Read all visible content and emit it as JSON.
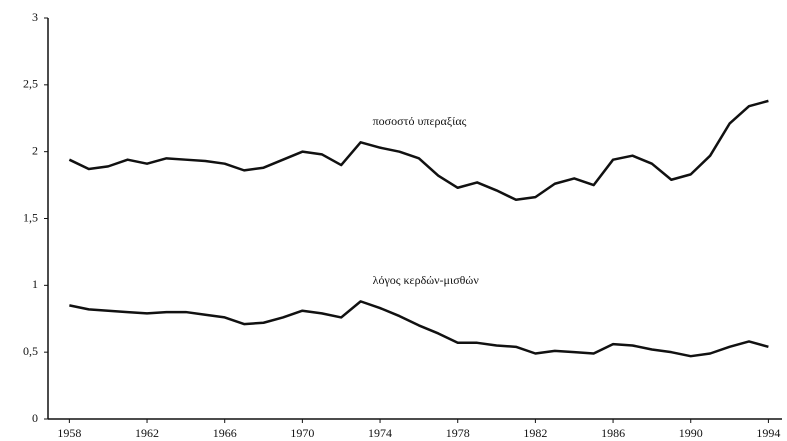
{
  "chart_data": {
    "type": "line",
    "x": [
      1958,
      1959,
      1960,
      1961,
      1962,
      1963,
      1964,
      1965,
      1966,
      1967,
      1968,
      1969,
      1970,
      1971,
      1972,
      1973,
      1974,
      1975,
      1976,
      1977,
      1978,
      1979,
      1980,
      1981,
      1982,
      1983,
      1984,
      1985,
      1986,
      1987,
      1988,
      1989,
      1990,
      1991,
      1992,
      1993,
      1994
    ],
    "series": [
      {
        "name": "ποσοστό υπεραξίας",
        "color": "#111111",
        "values": [
          1.94,
          1.87,
          1.89,
          1.94,
          1.91,
          1.95,
          1.94,
          1.93,
          1.91,
          1.86,
          1.88,
          1.94,
          2.0,
          1.98,
          1.9,
          2.07,
          2.03,
          2.0,
          1.95,
          1.82,
          1.73,
          1.77,
          1.71,
          1.64,
          1.66,
          1.76,
          1.8,
          1.75,
          1.94,
          1.97,
          1.91,
          1.79,
          1.83,
          1.97,
          2.21,
          2.34,
          2.38
        ]
      },
      {
        "name": "λόγος κερδών-μισθών",
        "color": "#111111",
        "values": [
          0.85,
          0.82,
          0.81,
          0.8,
          0.79,
          0.8,
          0.8,
          0.78,
          0.76,
          0.71,
          0.72,
          0.76,
          0.81,
          0.79,
          0.76,
          0.88,
          0.83,
          0.77,
          0.7,
          0.64,
          0.57,
          0.57,
          0.55,
          0.54,
          0.49,
          0.51,
          0.5,
          0.49,
          0.56,
          0.55,
          0.52,
          0.5,
          0.47,
          0.49,
          0.54,
          0.58,
          0.54
        ]
      }
    ],
    "xlim": [
      1956.9,
      1994.7
    ],
    "xticks": [
      1958,
      1962,
      1966,
      1970,
      1974,
      1978,
      1982,
      1986,
      1990,
      1994
    ],
    "ylim": [
      0,
      3
    ],
    "yticks": [
      0,
      {
        "value": 0.5,
        "label": "0,5"
      },
      1,
      {
        "value": 1.5,
        "label": "1,5"
      },
      2,
      {
        "value": 2.5,
        "label": "2,5"
      },
      3
    ]
  }
}
